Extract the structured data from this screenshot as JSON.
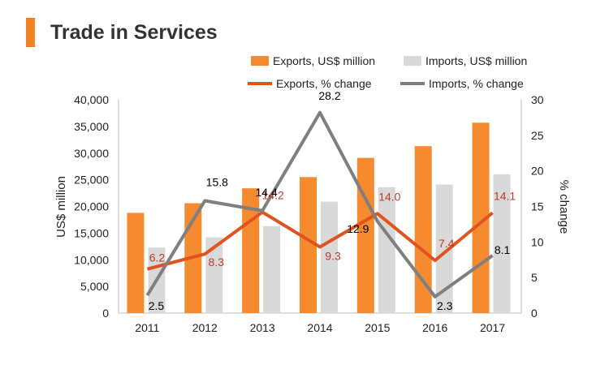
{
  "chart_data": {
    "type": "bar",
    "title": "Trade in Services",
    "categories": [
      "2011",
      "2012",
      "2013",
      "2014",
      "2015",
      "2016",
      "2017"
    ],
    "series": [
      {
        "name": "Exports, US$ million",
        "kind": "bar",
        "axis": "left",
        "color": "#F58A2E",
        "values": [
          18800,
          20600,
          23400,
          25500,
          29100,
          31300,
          35700
        ]
      },
      {
        "name": "Imports, US$ million",
        "kind": "bar",
        "axis": "left",
        "color": "#D9D9D9",
        "values": [
          12300,
          14200,
          16300,
          20900,
          23600,
          24100,
          26000
        ]
      },
      {
        "name": "Exports, % change",
        "kind": "line",
        "axis": "right",
        "color": "#E0531E",
        "label_color": "#C0392B",
        "values": [
          6.2,
          8.3,
          14.2,
          9.3,
          14.0,
          7.4,
          14.1
        ],
        "labels": [
          "6.2",
          "8.3",
          "14.2",
          "9.3",
          "14.0",
          "7.4",
          "14.1"
        ]
      },
      {
        "name": "Imports, % change",
        "kind": "line",
        "axis": "right",
        "color": "#7F7F7F",
        "label_color": "#000000",
        "values": [
          2.5,
          15.8,
          14.4,
          28.2,
          12.9,
          2.3,
          8.1
        ],
        "labels": [
          "2.5",
          "15.8",
          "14.4",
          "28.2",
          "12.9",
          "2.3",
          "8.1"
        ]
      }
    ],
    "ylabel": "US$ million",
    "ylabel2": "% change",
    "ylim": [
      0,
      40000
    ],
    "ylim2": [
      0,
      30
    ],
    "yticks": [
      0,
      5000,
      10000,
      15000,
      20000,
      25000,
      30000,
      35000,
      40000
    ],
    "yticks_labels": [
      "0",
      "5,000",
      "10,000",
      "15,000",
      "20,000",
      "25,000",
      "30,000",
      "35,000",
      "40,000"
    ],
    "yticks2": [
      0,
      5,
      10,
      15,
      20,
      25,
      30
    ],
    "yticks2_labels": [
      "0",
      "5",
      "10",
      "15",
      "20",
      "25",
      "30"
    ],
    "grid": false,
    "legend": "top-right"
  }
}
